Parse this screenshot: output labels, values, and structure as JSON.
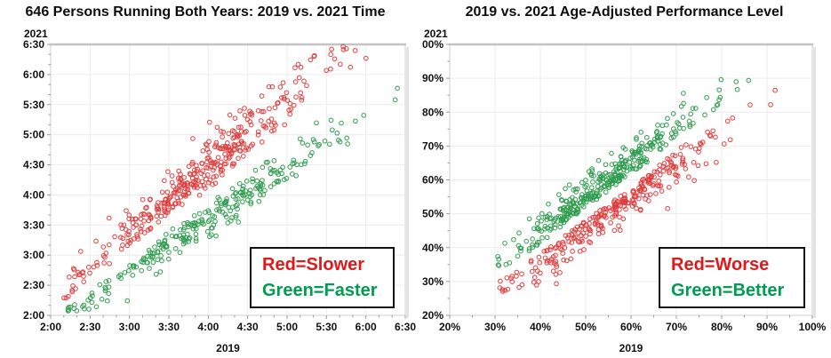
{
  "page": {
    "background": "#ffffff"
  },
  "chart_data": [
    {
      "id": "time-scatter",
      "type": "scatter",
      "title": "646 Persons Running Both Years: 2019 vs. 2021 Time",
      "xlabel": "2019",
      "ylabel": "2021",
      "x_ticks": [
        "2:00",
        "2:30",
        "3:00",
        "3:30",
        "4:00",
        "4:30",
        "5:00",
        "5:30",
        "6:00",
        "6:30"
      ],
      "y_ticks": [
        "6:30",
        "6:00",
        "5:30",
        "5:00",
        "4:30",
        "4:00",
        "3:30",
        "3:00",
        "2:30",
        "2:00"
      ],
      "x_range": [
        120,
        390
      ],
      "y_range": [
        120,
        390
      ],
      "units": "minutes (h:mm)",
      "minor_ticks_per_interval": 2,
      "grid": true,
      "n_points": 646,
      "marker": "open-circle",
      "legend": {
        "position": "bottom-right-inset",
        "lines": [
          {
            "text": "Red=Slower",
            "color": "#e01818"
          },
          {
            "text": "Green=Faster",
            "color": "#009c50"
          }
        ]
      },
      "series": [
        {
          "name": "slower-in-2021",
          "color": "#df3b3b",
          "relation": "above-diagonal",
          "n": 378,
          "seed": 1013,
          "x_mean": 236,
          "x_sd": 48,
          "x_min": 129,
          "x_max": 386,
          "side": 1,
          "d_base": 5,
          "d_gauss": 16,
          "d_slope": 0.2,
          "y_min": 124,
          "y_max": 388
        },
        {
          "name": "faster-in-2021",
          "color": "#2e9b4d",
          "relation": "below-diagonal",
          "n": 268,
          "seed": 2027,
          "x_mean": 242,
          "x_sd": 50,
          "x_min": 131,
          "x_max": 386,
          "side": -1,
          "d_base": 5,
          "d_gauss": 11,
          "d_slope": 0.18,
          "y_min": 124,
          "y_max": 388
        }
      ]
    },
    {
      "id": "performance-scatter",
      "type": "scatter",
      "title": "2019 vs. 2021 Age-Adjusted Performance Level",
      "xlabel": "2019",
      "ylabel": "2021",
      "x_ticks": [
        "20%",
        "30%",
        "40%",
        "50%",
        "60%",
        "70%",
        "80%",
        "90%",
        "100%"
      ],
      "y_ticks": [
        "00%",
        "90%",
        "80%",
        "70%",
        "60%",
        "50%",
        "40%",
        "30%",
        "20%"
      ],
      "x_range": [
        20,
        100
      ],
      "y_range": [
        20,
        100
      ],
      "units": "percent",
      "minor_ticks_per_interval": 1,
      "grid": true,
      "n_points": 646,
      "marker": "open-circle",
      "legend": {
        "position": "bottom-right-inset",
        "lines": [
          {
            "text": "Red=Worse",
            "color": "#e01818"
          },
          {
            "text": "Green=Better",
            "color": "#009c50"
          }
        ]
      },
      "series": [
        {
          "name": "better-in-2021",
          "color": "#2e9b4d",
          "relation": "above-diagonal",
          "n": 352,
          "seed": 3041,
          "x_mean": 55,
          "x_sd": 11,
          "x_min": 30.5,
          "x_max": 92,
          "side": 1,
          "d_base": 1.4,
          "d_gauss": 4.4,
          "d_slope": 0.05,
          "y_min": 27,
          "y_max": 90.5
        },
        {
          "name": "worse-in-2021",
          "color": "#df3b3b",
          "relation": "below-diagonal",
          "n": 294,
          "seed": 4093,
          "x_mean": 57,
          "x_sd": 11.5,
          "x_min": 31,
          "x_max": 92,
          "side": -1,
          "d_base": 1.4,
          "d_gauss": 4.2,
          "d_slope": 0.07,
          "y_min": 27,
          "y_max": 90.5
        }
      ]
    }
  ],
  "style": {
    "grid_color": "#ececec",
    "frame_color": "#cfcfcf",
    "frame_top_color": "#c3c3c3",
    "tick_color": "#9a9a9a",
    "tick_label_color": "#111111",
    "marker_radius": 2.3,
    "marker_stroke_width": 1.1
  }
}
